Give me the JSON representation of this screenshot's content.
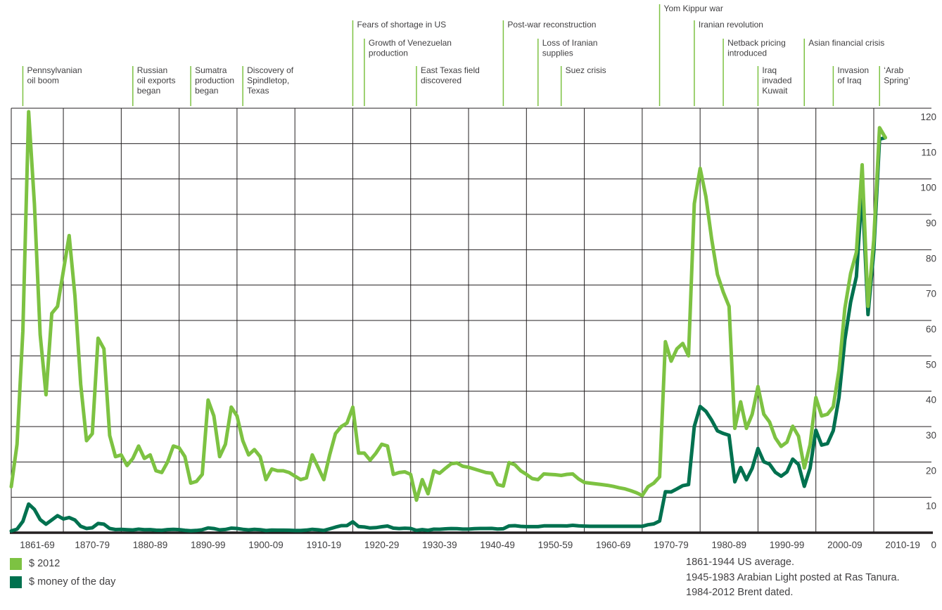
{
  "legend": {
    "items": [
      {
        "label": "$ 2012",
        "color": "#7DC242"
      },
      {
        "label": "$ money of the day",
        "color": "#00714F"
      }
    ]
  },
  "footnotes": {
    "line1": "1861-1944 US average.",
    "line2": "1945-1983 Arabian Light posted at Ras Tanura.",
    "line3": "1984-2012 Brent dated."
  },
  "chart_data": {
    "type": "line",
    "x_start": 1861,
    "x_end": 2012,
    "x_tick_labels": [
      "1861-69",
      "1870-79",
      "1880-89",
      "1890-99",
      "1900-09",
      "1910-19",
      "1920-29",
      "1930-39",
      "1940-49",
      "1950-59",
      "1960-69",
      "1970-79",
      "1980-89",
      "1990-99",
      "2000-09",
      "2010-19"
    ],
    "y_ticks": [
      0,
      10,
      20,
      30,
      40,
      50,
      60,
      70,
      80,
      90,
      100,
      110,
      120
    ],
    "ylim": [
      0,
      120
    ],
    "grid": true,
    "legend_position": "bottom-left",
    "series": [
      {
        "name": "$ 2012",
        "color": "#7DC242",
        "values": [
          13,
          25,
          57,
          119,
          93,
          56,
          39,
          62,
          64,
          74,
          84,
          67,
          42,
          26,
          28,
          55,
          52,
          27.5,
          21.5,
          22,
          19,
          21,
          24.5,
          21,
          22,
          17.5,
          17,
          20,
          24.5,
          24,
          21.5,
          14,
          14.5,
          16.5,
          37.5,
          33,
          21.5,
          25,
          35.5,
          33,
          26,
          22,
          23.5,
          21.5,
          15,
          18,
          17.5,
          17.5,
          17,
          16,
          15,
          15.5,
          22,
          18.5,
          15,
          22,
          28,
          30,
          31,
          35.5,
          22.5,
          22.5,
          20.5,
          22.5,
          25,
          24.5,
          16.5,
          17,
          17.2,
          16.5,
          9.2,
          15,
          11,
          17.5,
          16.8,
          18.2,
          19.5,
          19.7,
          18.8,
          18.5,
          18,
          17.5,
          17,
          16.8,
          13.6,
          13.2,
          19.8,
          19.2,
          17.5,
          16.5,
          15.3,
          15,
          16.6,
          16.5,
          16.4,
          16.2,
          16.5,
          16.6,
          15.2,
          14.2,
          14,
          13.8,
          13.6,
          13.4,
          13.1,
          12.7,
          12.4,
          11.9,
          11.3,
          10.5,
          13,
          14,
          15.8,
          54,
          48.5,
          52,
          53.5,
          50,
          93,
          103,
          95,
          83,
          73,
          68,
          64,
          29.5,
          37,
          29.5,
          33.5,
          41.3,
          33.5,
          31.3,
          26.8,
          24.4,
          25.6,
          30.1,
          27.3,
          18.3,
          24.9,
          38.2,
          33,
          33.5,
          35.6,
          46,
          63.4,
          73.3,
          79.3,
          104,
          64,
          82.7,
          114.5,
          111.7
        ]
      },
      {
        "name": "$ money of the day",
        "color": "#00714F",
        "values": [
          0.5,
          1.0,
          3.2,
          8.1,
          6.6,
          3.7,
          2.4,
          3.6,
          4.8,
          3.9,
          4.3,
          3.6,
          1.8,
          1.2,
          1.4,
          2.6,
          2.4,
          1.2,
          0.9,
          0.95,
          0.86,
          0.78,
          1.0,
          0.84,
          0.88,
          0.71,
          0.67,
          0.88,
          0.94,
          0.87,
          0.67,
          0.56,
          0.64,
          0.84,
          1.36,
          1.18,
          0.79,
          0.91,
          1.29,
          1.19,
          0.96,
          0.8,
          0.94,
          0.86,
          0.62,
          0.73,
          0.72,
          0.72,
          0.7,
          0.61,
          0.61,
          0.74,
          0.95,
          0.81,
          0.64,
          1.1,
          1.56,
          1.98,
          2.01,
          3.07,
          1.73,
          1.61,
          1.34,
          1.43,
          1.68,
          1.88,
          1.3,
          1.17,
          1.27,
          1.19,
          0.65,
          0.87,
          0.67,
          1.0,
          0.97,
          1.09,
          1.18,
          1.13,
          1.02,
          1.02,
          1.14,
          1.19,
          1.2,
          1.21,
          1.05,
          1.12,
          1.9,
          1.99,
          1.78,
          1.71,
          1.71,
          1.71,
          1.93,
          1.93,
          1.93,
          1.93,
          1.9,
          2.08,
          1.92,
          1.86,
          1.8,
          1.8,
          1.8,
          1.8,
          1.8,
          1.8,
          1.8,
          1.8,
          1.8,
          1.8,
          2.24,
          2.48,
          3.29,
          11.58,
          11.53,
          12.38,
          13.3,
          13.6,
          30.03,
          35.69,
          34.32,
          31.8,
          28.78,
          28.06,
          27.53,
          14.38,
          18.42,
          14.96,
          18.2,
          23.81,
          20.05,
          19.37,
          17.07,
          15.98,
          17.18,
          20.8,
          19.3,
          13.11,
          18.25,
          28.98,
          24.77,
          25.19,
          28.83,
          38.27,
          54.52,
          65.14,
          72.39,
          97.26,
          61.67,
          79.5,
          111.26,
          111.67
        ]
      }
    ],
    "annotations": [
      {
        "label": "Pennsylvanian oil boom",
        "lines": [
          "Pennsylvanian",
          "oil boom"
        ],
        "year": 1863,
        "row": 3
      },
      {
        "label": "Russian oil exports began",
        "lines": [
          "Russian",
          "oil exports",
          "began"
        ],
        "year": 1882,
        "row": 3
      },
      {
        "label": "Sumatra production began",
        "lines": [
          "Sumatra",
          "production",
          "began"
        ],
        "year": 1892,
        "row": 3
      },
      {
        "label": "Discovery of Spindletop, Texas",
        "lines": [
          "Discovery of",
          "Spindletop,",
          "Texas"
        ],
        "year": 1901,
        "row": 3
      },
      {
        "label": "Fears of shortage in US",
        "lines": [
          "Fears of shortage in US"
        ],
        "year": 1920,
        "row": 1
      },
      {
        "label": "Growth of Venezuelan production",
        "lines": [
          "Growth of Venezuelan",
          "production"
        ],
        "year": 1922,
        "row": 2
      },
      {
        "label": "East Texas field discovered",
        "lines": [
          "East Texas field",
          "discovered"
        ],
        "year": 1931,
        "row": 3
      },
      {
        "label": "Post-war reconstruction",
        "lines": [
          "Post-war reconstruction"
        ],
        "year": 1946,
        "row": 1
      },
      {
        "label": "Loss of Iranian supplies",
        "lines": [
          "Loss of Iranian",
          "supplies"
        ],
        "year": 1952,
        "row": 2
      },
      {
        "label": "Suez crisis",
        "lines": [
          "Suez crisis"
        ],
        "year": 1956,
        "row": 3
      },
      {
        "label": "Yom Kippur war",
        "lines": [
          "Yom Kippur war"
        ],
        "year": 1973,
        "row": 0
      },
      {
        "label": "Iranian revolution",
        "lines": [
          "Iranian revolution"
        ],
        "year": 1979,
        "row": 1
      },
      {
        "label": "Netback pricing introduced",
        "lines": [
          "Netback pricing",
          "introduced"
        ],
        "year": 1984,
        "row": 2
      },
      {
        "label": "Iraq invaded Kuwait",
        "lines": [
          "Iraq",
          "invaded",
          "Kuwait"
        ],
        "year": 1990,
        "row": 3
      },
      {
        "label": "Asian financial crisis",
        "lines": [
          "Asian financial crisis"
        ],
        "year": 1998,
        "row": 2
      },
      {
        "label": "Invasion of Iraq",
        "lines": [
          "Invasion",
          "of Iraq"
        ],
        "year": 2003,
        "row": 3
      },
      {
        "label": "‘Arab Spring’",
        "lines": [
          "‘Arab",
          "Spring’"
        ],
        "year": 2011,
        "row": 3
      }
    ]
  }
}
